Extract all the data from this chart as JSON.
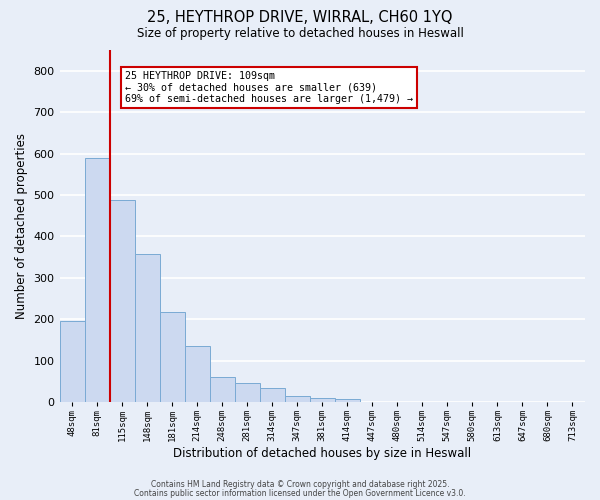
{
  "title_line1": "25, HEYTHROP DRIVE, WIRRAL, CH60 1YQ",
  "title_line2": "Size of property relative to detached houses in Heswall",
  "xlabel": "Distribution of detached houses by size in Heswall",
  "ylabel": "Number of detached properties",
  "bar_values": [
    197,
    590,
    487,
    358,
    218,
    135,
    62,
    46,
    35,
    16,
    11,
    8,
    0,
    0,
    0,
    0,
    0,
    0,
    0,
    0,
    0
  ],
  "bin_labels": [
    "48sqm",
    "81sqm",
    "115sqm",
    "148sqm",
    "181sqm",
    "214sqm",
    "248sqm",
    "281sqm",
    "314sqm",
    "347sqm",
    "381sqm",
    "414sqm",
    "447sqm",
    "480sqm",
    "514sqm",
    "547sqm",
    "580sqm",
    "613sqm",
    "647sqm",
    "680sqm",
    "713sqm"
  ],
  "bar_color": "#ccd9f0",
  "bar_edgecolor": "#7aaad4",
  "marker_line_color": "#cc0000",
  "ylim": [
    0,
    850
  ],
  "yticks": [
    0,
    100,
    200,
    300,
    400,
    500,
    600,
    700,
    800
  ],
  "annotation_title": "25 HEYTHROP DRIVE: 109sqm",
  "annotation_line2": "← 30% of detached houses are smaller (639)",
  "annotation_line3": "69% of semi-detached houses are larger (1,479) →",
  "annotation_box_color": "#ffffff",
  "annotation_box_edgecolor": "#cc0000",
  "footer_line1": "Contains HM Land Registry data © Crown copyright and database right 2025.",
  "footer_line2": "Contains public sector information licensed under the Open Government Licence v3.0.",
  "background_color": "#e8eef8",
  "grid_color": "#ffffff"
}
